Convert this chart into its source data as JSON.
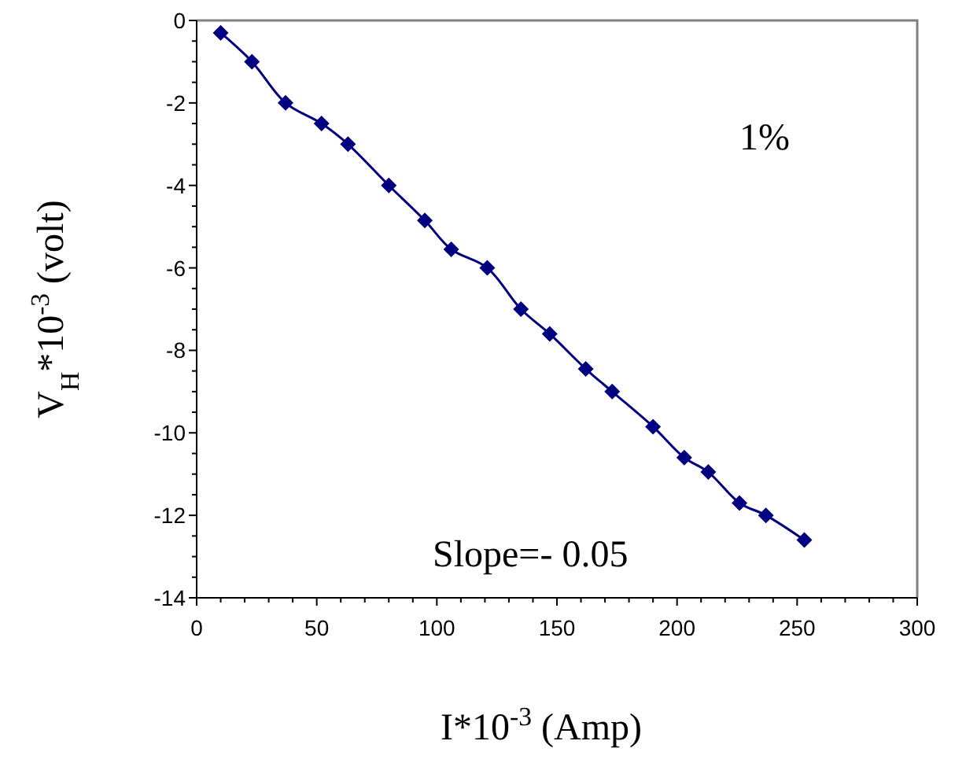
{
  "chart_data": {
    "type": "line",
    "xlabel": "I*10$^{-3}$ (Amp)",
    "ylabel": "V$_{H}$*10$^{-3}$ (volt)",
    "x": [
      10,
      23,
      37,
      52,
      63,
      80,
      95,
      106,
      121,
      135,
      147,
      162,
      173,
      190,
      203,
      213,
      226,
      237,
      253
    ],
    "series": [
      {
        "color": "#000080",
        "values": [
          -0.3,
          -1.0,
          -2.0,
          -2.5,
          -3.0,
          -4.0,
          -4.85,
          -5.55,
          -6.0,
          -7.0,
          -7.6,
          -8.45,
          -9.0,
          -9.85,
          -10.6,
          -10.95,
          -11.7,
          -12.0,
          -12.6
        ]
      }
    ],
    "xlim": [
      0,
      300
    ],
    "ylim": [
      -14,
      0
    ],
    "xticks": [
      0,
      {
        "value": 10,
        "label": null
      },
      {
        "value": 20,
        "label": null
      },
      {
        "value": 30,
        "label": null
      },
      {
        "value": 40,
        "label": null
      },
      50,
      {
        "value": 60,
        "label": null
      },
      {
        "value": 70,
        "label": null
      },
      {
        "value": 80,
        "label": null
      },
      {
        "value": 90,
        "label": null
      },
      100,
      {
        "value": 110,
        "label": null
      },
      {
        "value": 120,
        "label": null
      },
      {
        "value": 130,
        "label": null
      },
      {
        "value": 140,
        "label": null
      },
      150,
      {
        "value": 160,
        "label": null
      },
      {
        "value": 170,
        "label": null
      },
      {
        "value": 180,
        "label": null
      },
      {
        "value": 190,
        "label": null
      },
      200,
      {
        "value": 210,
        "label": null
      },
      {
        "value": 220,
        "label": null
      },
      {
        "value": 230,
        "label": null
      },
      {
        "value": 240,
        "label": null
      },
      250,
      {
        "value": 260,
        "label": null
      },
      {
        "value": 270,
        "label": null
      },
      {
        "value": 280,
        "label": null
      },
      {
        "value": 290,
        "label": null
      },
      300
    ],
    "yticks": [
      -14,
      {
        "value": -13.5,
        "label": null
      },
      {
        "value": -13,
        "label": null
      },
      {
        "value": -12.5,
        "label": null
      },
      -12,
      {
        "value": -11.5,
        "label": null
      },
      {
        "value": -11,
        "label": null
      },
      {
        "value": -10.5,
        "label": null
      },
      -10,
      {
        "value": -9.5,
        "label": null
      },
      {
        "value": -9,
        "label": null
      },
      {
        "value": -8.5,
        "label": null
      },
      -8,
      {
        "value": -7.5,
        "label": null
      },
      {
        "value": -7,
        "label": null
      },
      {
        "value": -6.5,
        "label": null
      },
      -6,
      {
        "value": -5.5,
        "label": null
      },
      {
        "value": -5,
        "label": null
      },
      {
        "value": -4.5,
        "label": null
      },
      -4,
      {
        "value": -3.5,
        "label": null
      },
      {
        "value": -3,
        "label": null
      },
      {
        "value": -2.5,
        "label": null
      },
      -2,
      {
        "value": -1.5,
        "label": null
      },
      {
        "value": -1,
        "label": null
      },
      {
        "value": -0.5,
        "label": null
      },
      0
    ],
    "marker": "diamond",
    "line_style": "solid",
    "grid": false,
    "annotations": [
      "1%",
      "Slope=- 0.05"
    ]
  }
}
